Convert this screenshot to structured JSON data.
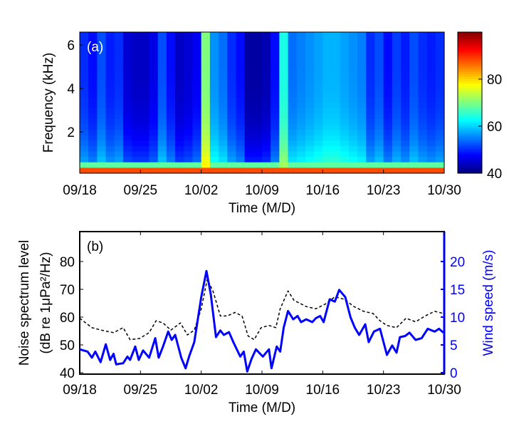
{
  "chart_data": [
    {
      "type": "heatmap",
      "panel_label": "(a)",
      "xlabel": "Time (M/D)",
      "ylabel": "Frequency (kHz)",
      "x_tick_labels": [
        "09/18",
        "09/25",
        "10/02",
        "10/09",
        "10/16",
        "10/23",
        "10/30"
      ],
      "x_range_days": [
        0,
        42
      ],
      "y_ticks": [
        2,
        4,
        6
      ],
      "ylim": [
        0,
        6.5
      ],
      "colorbar": {
        "ticks": [
          40,
          60,
          80
        ],
        "range": [
          40,
          100
        ],
        "colormap": "jet"
      },
      "column_level_dB_upper_band": [
        50,
        48,
        52,
        49,
        50,
        45,
        44,
        44,
        46,
        52,
        48,
        44,
        45,
        47,
        70,
        56,
        54,
        50,
        48,
        42,
        42,
        43,
        48,
        64,
        54,
        55,
        56,
        57,
        58,
        58,
        57,
        56,
        55,
        50,
        52,
        48,
        51,
        49,
        52,
        50,
        49,
        50
      ],
      "low_frequency_band_level_dB": 88
    },
    {
      "type": "line",
      "panel_label": "(b)",
      "xlabel": "Time (M/D)",
      "ylabel_left": [
        "Noise spectrum level",
        "(dB re 1μPa²/Hz)"
      ],
      "ylabel_right": "Wind speed (m/s)",
      "x_tick_labels": [
        "09/18",
        "09/25",
        "10/02",
        "10/09",
        "10/16",
        "10/23",
        "10/30"
      ],
      "x_range_days": [
        0,
        42
      ],
      "ylim_left": [
        40,
        90
      ],
      "y_ticks_left": [
        40,
        50,
        60,
        70,
        80
      ],
      "ylim_right": [
        0,
        25
      ],
      "y_ticks_right": [
        0,
        5,
        10,
        15,
        20
      ],
      "series": [
        {
          "axis": "left",
          "style": "dotted",
          "color": "#000000",
          "x": [
            0,
            1.4,
            2.5,
            3.9,
            5,
            5.8,
            6.9,
            8,
            8.8,
            9.6,
            10.5,
            11.6,
            12.4,
            13.2,
            14,
            14.7,
            15.4,
            16.2,
            17,
            17.9,
            18.7,
            19.4,
            20.1,
            20.9,
            21.8,
            22.6,
            23.1,
            24,
            24.7,
            26.1,
            27.2,
            28.3,
            29.4,
            30.5,
            31.6,
            32.7,
            33.8,
            34.6,
            35.4,
            36.5,
            37.6,
            38.7,
            39.8,
            40.9,
            41.9
          ],
          "y": [
            59.6,
            56.2,
            55.3,
            54.4,
            56.2,
            51.9,
            52.3,
            54.4,
            58.7,
            57.9,
            55.3,
            57.9,
            53.6,
            55.3,
            63,
            73.7,
            69,
            60.4,
            60.4,
            61.7,
            60.4,
            53.2,
            51.9,
            56.2,
            57,
            56.2,
            63,
            69.4,
            66,
            63.8,
            63,
            64.7,
            67.3,
            66.4,
            63.8,
            62.1,
            61.3,
            58.7,
            57,
            56.2,
            59.6,
            58.3,
            60.4,
            62.1,
            61.3
          ]
        },
        {
          "axis": "right",
          "style": "solid",
          "color": "#0000ff",
          "x": [
            0,
            0.9,
            1.4,
            1.8,
            2.4,
            3,
            3.5,
            3.9,
            4.2,
            5,
            5.5,
            5.8,
            6.4,
            6.8,
            7.3,
            8,
            8.7,
            9.1,
            9.6,
            10.2,
            10.6,
            11,
            11.7,
            12.2,
            12.6,
            13.2,
            14,
            14.6,
            15.1,
            15.7,
            16.2,
            16.6,
            17.2,
            17.7,
            18.5,
            18.9,
            19.3,
            19.8,
            20.3,
            21.1,
            21.8,
            22.1,
            22.7,
            23.1,
            23.5,
            24,
            24.6,
            25.1,
            25.5,
            26.1,
            26.8,
            27.2,
            27.7,
            28.1,
            28.8,
            29.4,
            29.9,
            30.6,
            31.2,
            31.7,
            32.2,
            32.9,
            33.3,
            33.9,
            34.6,
            35.4,
            36,
            36.5,
            36.9,
            37.5,
            38,
            38.7,
            39.4,
            40.1,
            40.9,
            41.4,
            41.9
          ],
          "y": [
            4.2,
            3.8,
            2.7,
            3.8,
            1.9,
            5.1,
            2.3,
            3.4,
            1.5,
            1.7,
            2.9,
            2.3,
            4.7,
            2.3,
            4.0,
            2.7,
            6.2,
            2.7,
            4.7,
            7.4,
            5.9,
            6.8,
            2.7,
            0.8,
            2.9,
            5.5,
            13.6,
            18.3,
            14.1,
            6.4,
            7.6,
            6.8,
            7.3,
            5.5,
            2.9,
            3.8,
            0.2,
            2.5,
            4.2,
            2.9,
            4.2,
            0.8,
            4.7,
            3.8,
            8.1,
            11.1,
            9.6,
            10.2,
            9.1,
            9.6,
            9.1,
            9.8,
            10.2,
            9.1,
            13.2,
            12.8,
            14.9,
            13.6,
            10,
            8.1,
            6.8,
            8.7,
            5.5,
            7.4,
            7.9,
            3.2,
            4.9,
            3.6,
            6.4,
            6.6,
            7.2,
            5.9,
            6.2,
            7.9,
            7.4,
            7.9,
            7.2
          ]
        }
      ]
    }
  ]
}
